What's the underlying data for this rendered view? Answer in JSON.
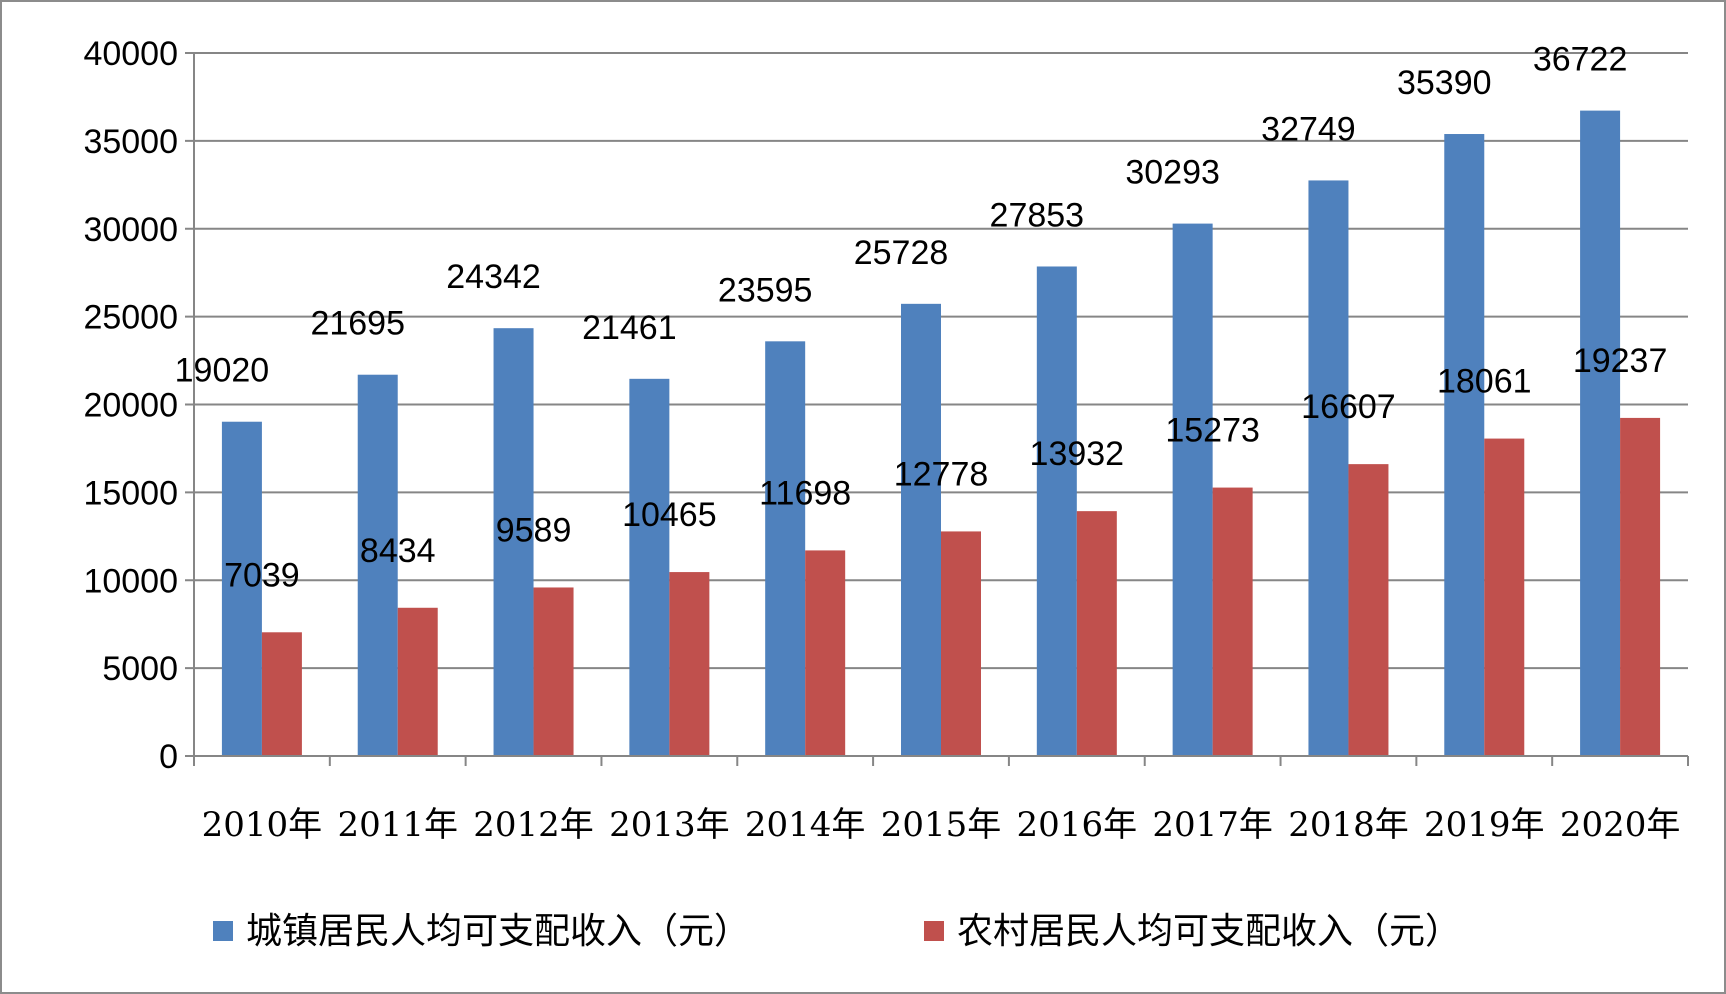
{
  "chart_data": {
    "type": "bar",
    "categories": [
      "2010年",
      "2011年",
      "2012年",
      "2013年",
      "2014年",
      "2015年",
      "2016年",
      "2017年",
      "2018年",
      "2019年",
      "2020年"
    ],
    "series": [
      {
        "name": "城镇居民人均可支配收入（元）",
        "color": "#4f81bd",
        "values": [
          19020,
          21695,
          24342,
          21461,
          23595,
          25728,
          27853,
          30293,
          32749,
          35390,
          36722
        ]
      },
      {
        "name": "农村居民人均可支配收入（元）",
        "color": "#c0504d",
        "values": [
          7039,
          8434,
          9589,
          10465,
          11698,
          12778,
          13932,
          15273,
          16607,
          18061,
          19237
        ]
      }
    ],
    "ylim": [
      0,
      40000
    ],
    "yticks": [
      0,
      5000,
      10000,
      15000,
      20000,
      25000,
      30000,
      35000,
      40000
    ],
    "grid": true,
    "legend_position": "bottom",
    "data_labels": true
  }
}
